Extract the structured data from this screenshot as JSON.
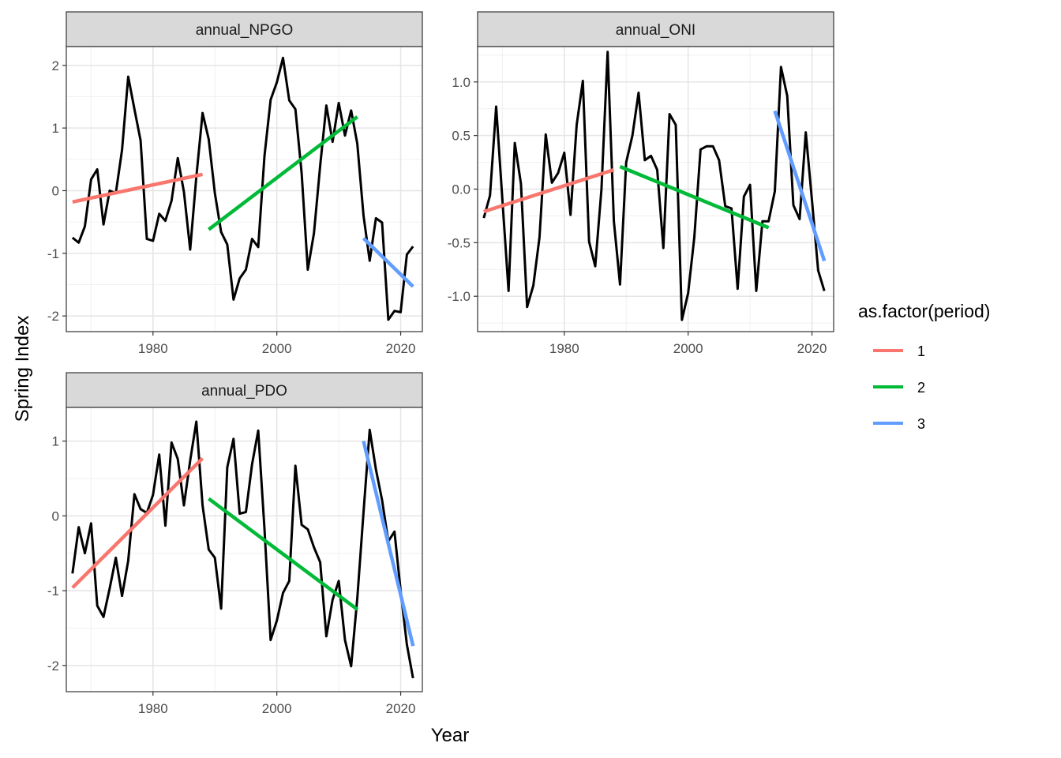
{
  "chart_data": {
    "type": "line",
    "xlabel": "Year",
    "ylabel": "Spring Index",
    "legend": {
      "title": "as.factor(period)",
      "placement": "right",
      "entries": [
        {
          "label": "1",
          "color": "#F8766D"
        },
        {
          "label": "2",
          "color": "#00BA38"
        },
        {
          "label": "3",
          "color": "#619CFF"
        }
      ]
    },
    "xlim": [
      1966,
      2023.5
    ],
    "x_ticks": [
      1980,
      2000,
      2020
    ],
    "x_tick_labels": [
      "1980",
      "2000",
      "2020"
    ],
    "grid": true,
    "panels": [
      {
        "name": "annual_NPGO",
        "ylim": [
          -2.25,
          2.3
        ],
        "y_ticks": [
          -2,
          -1,
          0,
          1,
          2
        ],
        "y_tick_labels": [
          "-2",
          "-1",
          "0",
          "1",
          "2"
        ],
        "series": {
          "x": [
            1967,
            1968,
            1969,
            1970,
            1971,
            1972,
            1973,
            1974,
            1975,
            1976,
            1977,
            1978,
            1979,
            1980,
            1981,
            1982,
            1983,
            1984,
            1985,
            1986,
            1987,
            1988,
            1989,
            1990,
            1991,
            1992,
            1993,
            1994,
            1995,
            1996,
            1997,
            1998,
            1999,
            2000,
            2001,
            2002,
            2003,
            2004,
            2005,
            2006,
            2007,
            2008,
            2009,
            2010,
            2011,
            2012,
            2013,
            2014,
            2015,
            2016,
            2017,
            2018,
            2019,
            2020,
            2021,
            2022
          ],
          "y": [
            -0.75,
            -0.83,
            -0.57,
            0.18,
            0.34,
            -0.54,
            0.0,
            -0.04,
            0.65,
            1.82,
            1.3,
            0.8,
            -0.77,
            -0.8,
            -0.37,
            -0.48,
            -0.16,
            0.52,
            -0.02,
            -0.94,
            0.22,
            1.24,
            0.82,
            -0.04,
            -0.66,
            -0.86,
            -1.74,
            -1.4,
            -1.26,
            -0.77,
            -0.9,
            0.55,
            1.45,
            1.73,
            2.12,
            1.44,
            1.3,
            0.28,
            -1.26,
            -0.68,
            0.4,
            1.36,
            0.78,
            1.4,
            0.88,
            1.28,
            0.75,
            -0.4,
            -1.12,
            -0.44,
            -0.51,
            -2.06,
            -1.92,
            -1.94,
            -1.02,
            -0.89
          ]
        },
        "trends": [
          {
            "period": "1",
            "x": [
              1967,
              1988
            ],
            "y": [
              -0.18,
              0.26
            ]
          },
          {
            "period": "2",
            "x": [
              1989,
              2013
            ],
            "y": [
              -0.62,
              1.18
            ]
          },
          {
            "period": "3",
            "x": [
              2014,
              2022
            ],
            "y": [
              -0.76,
              -1.53
            ]
          }
        ]
      },
      {
        "name": "annual_ONI",
        "ylim": [
          -1.33,
          1.33
        ],
        "y_ticks": [
          -1.0,
          -0.5,
          0.0,
          0.5,
          1.0
        ],
        "y_tick_labels": [
          "-1.0",
          "-0.5",
          "0.0",
          "0.5",
          "1.0"
        ],
        "series": {
          "x": [
            1967,
            1968,
            1969,
            1970,
            1971,
            1972,
            1973,
            1974,
            1975,
            1976,
            1977,
            1978,
            1979,
            1980,
            1981,
            1982,
            1983,
            1984,
            1985,
            1986,
            1987,
            1988,
            1989,
            1990,
            1991,
            1992,
            1993,
            1994,
            1995,
            1996,
            1997,
            1998,
            1999,
            2000,
            2001,
            2002,
            2003,
            2004,
            2005,
            2006,
            2007,
            2008,
            2009,
            2010,
            2011,
            2012,
            2013,
            2014,
            2015,
            2016,
            2017,
            2018,
            2019,
            2020,
            2021,
            2022
          ],
          "y": [
            -0.27,
            -0.06,
            0.77,
            -0.1,
            -0.95,
            0.43,
            0.05,
            -1.1,
            -0.9,
            -0.45,
            0.51,
            0.06,
            0.15,
            0.34,
            -0.24,
            0.6,
            1.01,
            -0.49,
            -0.72,
            0.0,
            1.28,
            -0.3,
            -0.89,
            0.25,
            0.5,
            0.9,
            0.27,
            0.31,
            0.18,
            -0.55,
            0.7,
            0.6,
            -1.22,
            -0.97,
            -0.45,
            0.37,
            0.4,
            0.4,
            0.27,
            -0.16,
            -0.18,
            -0.93,
            -0.07,
            0.04,
            -0.95,
            -0.3,
            -0.3,
            -0.02,
            1.14,
            0.87,
            -0.15,
            -0.28,
            0.53,
            -0.1,
            -0.76,
            -0.95
          ]
        },
        "trends": [
          {
            "period": "1",
            "x": [
              1967,
              1988
            ],
            "y": [
              -0.21,
              0.18
            ]
          },
          {
            "period": "2",
            "x": [
              1989,
              2013
            ],
            "y": [
              0.21,
              -0.36
            ]
          },
          {
            "period": "3",
            "x": [
              2014,
              2022
            ],
            "y": [
              0.73,
              -0.67
            ]
          }
        ]
      },
      {
        "name": "annual_PDO",
        "ylim": [
          -2.35,
          1.45
        ],
        "y_ticks": [
          -2,
          -1,
          0,
          1
        ],
        "y_tick_labels": [
          "-2",
          "-1",
          "0",
          "1"
        ],
        "series": {
          "x": [
            1967,
            1968,
            1969,
            1970,
            1971,
            1972,
            1973,
            1974,
            1975,
            1976,
            1977,
            1978,
            1979,
            1980,
            1981,
            1982,
            1983,
            1984,
            1985,
            1986,
            1987,
            1988,
            1989,
            1990,
            1991,
            1992,
            1993,
            1994,
            1995,
            1996,
            1997,
            1998,
            1999,
            2000,
            2001,
            2002,
            2003,
            2004,
            2005,
            2006,
            2007,
            2008,
            2009,
            2010,
            2011,
            2012,
            2013,
            2014,
            2015,
            2016,
            2017,
            2018,
            2019,
            2020,
            2021,
            2022
          ],
          "y": [
            -0.77,
            -0.15,
            -0.5,
            -0.1,
            -1.2,
            -1.35,
            -0.97,
            -0.56,
            -1.07,
            -0.6,
            0.29,
            0.09,
            0.04,
            0.28,
            0.82,
            -0.13,
            0.98,
            0.76,
            0.14,
            0.74,
            1.26,
            0.14,
            -0.45,
            -0.56,
            -1.24,
            0.65,
            1.03,
            0.03,
            0.05,
            0.69,
            1.14,
            -0.17,
            -1.66,
            -1.4,
            -1.03,
            -0.87,
            0.67,
            -0.12,
            -0.18,
            -0.42,
            -0.62,
            -1.61,
            -1.12,
            -0.87,
            -1.66,
            -2.01,
            -1.1,
            0.05,
            1.15,
            0.62,
            0.21,
            -0.34,
            -0.21,
            -1.0,
            -1.72,
            -2.17
          ]
        },
        "trends": [
          {
            "period": "1",
            "x": [
              1967,
              1988
            ],
            "y": [
              -0.96,
              0.77
            ]
          },
          {
            "period": "2",
            "x": [
              1989,
              2013
            ],
            "y": [
              0.23,
              -1.25
            ]
          },
          {
            "period": "3",
            "x": [
              2014,
              2022
            ],
            "y": [
              1.0,
              -1.74
            ]
          }
        ]
      }
    ]
  }
}
